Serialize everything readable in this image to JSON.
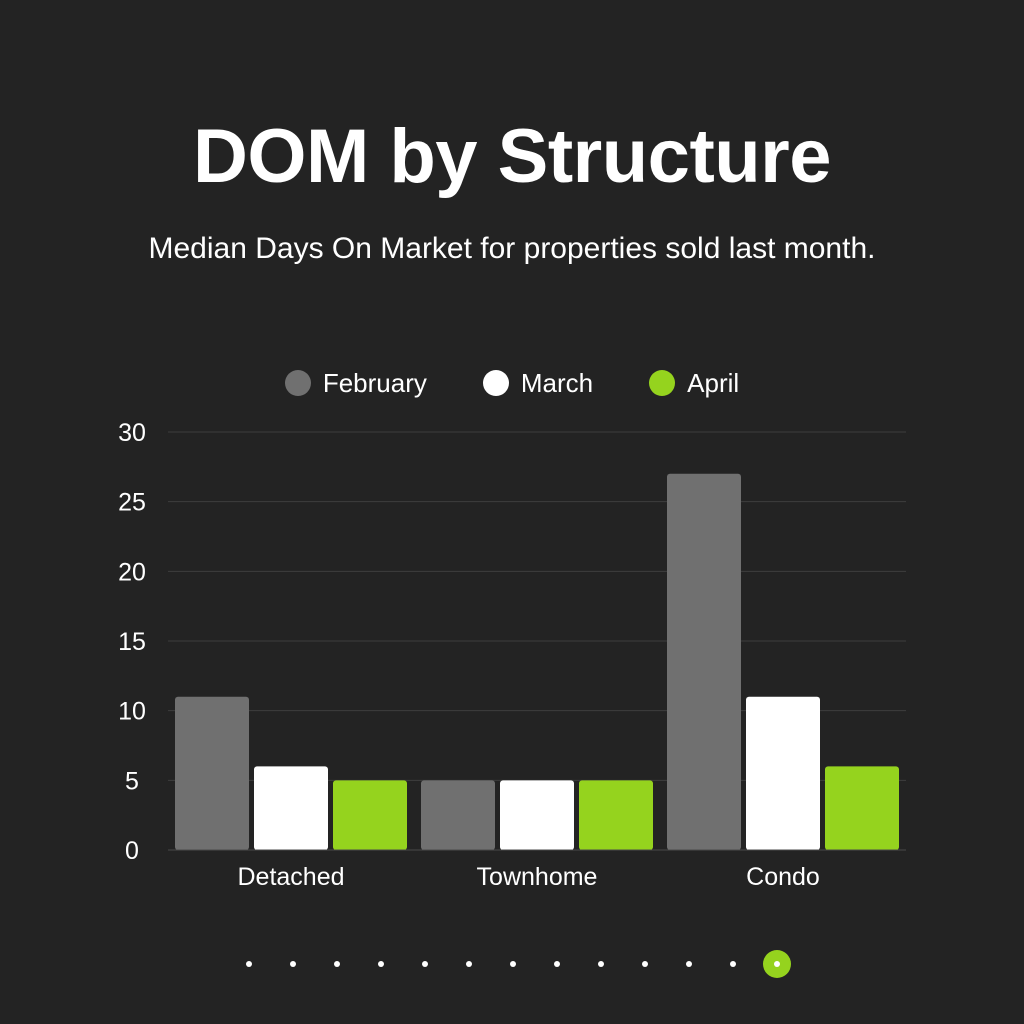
{
  "chart_data": {
    "type": "bar",
    "title": "DOM by Structure",
    "subtitle": "Median Days On Market for properties sold last month.",
    "categories": [
      "Detached",
      "Townhome",
      "Condo"
    ],
    "series": [
      {
        "name": "February",
        "values": [
          11,
          5,
          27
        ],
        "color": "#707070"
      },
      {
        "name": "March",
        "values": [
          6,
          5,
          11
        ],
        "color": "#ffffff"
      },
      {
        "name": "April",
        "values": [
          5,
          5,
          6
        ],
        "color": "#95d31e"
      }
    ],
    "ylim": [
      0,
      30
    ],
    "yticks": [
      0,
      5,
      10,
      15,
      20,
      25,
      30
    ],
    "grid": true,
    "legend_position": "top-center"
  },
  "pagination": {
    "total": 13,
    "active_index": 12,
    "active_color": "#95d31e"
  }
}
